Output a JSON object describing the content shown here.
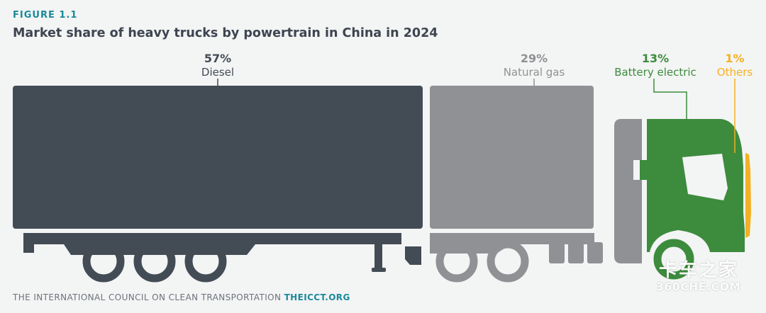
{
  "figure_label": "FIGURE 1.1",
  "colors": {
    "diesel": "#434c55",
    "natural_gas": "#8f9194",
    "battery_electric": "#3d8b3d",
    "others": "#f3b023",
    "figure_label": "#1a8a9a",
    "title": "#3d4550"
  },
  "chart_data": {
    "type": "pictograph",
    "title": "Market share of heavy trucks by powertrain in China in 2024",
    "unit": "%",
    "categories": [
      "Diesel",
      "Natural gas",
      "Battery electric",
      "Others"
    ],
    "values": [
      57,
      29,
      13,
      1
    ],
    "series": [
      {
        "name": "Diesel",
        "value": 57,
        "label": "57%",
        "color": "#434c55"
      },
      {
        "name": "Natural gas",
        "value": 29,
        "label": "29%",
        "color": "#8f9194"
      },
      {
        "name": "Battery electric",
        "value": 13,
        "label": "13%",
        "color": "#3d8b3d"
      },
      {
        "name": "Others",
        "value": 1,
        "label": "1%",
        "color": "#f3b023"
      }
    ]
  },
  "footer": {
    "org": "THE INTERNATIONAL COUNCIL ON CLEAN TRANSPORTATION",
    "site": "THEICCT.ORG"
  },
  "watermark": {
    "cn": "卡车之家",
    "en": "360CHE.COM"
  }
}
